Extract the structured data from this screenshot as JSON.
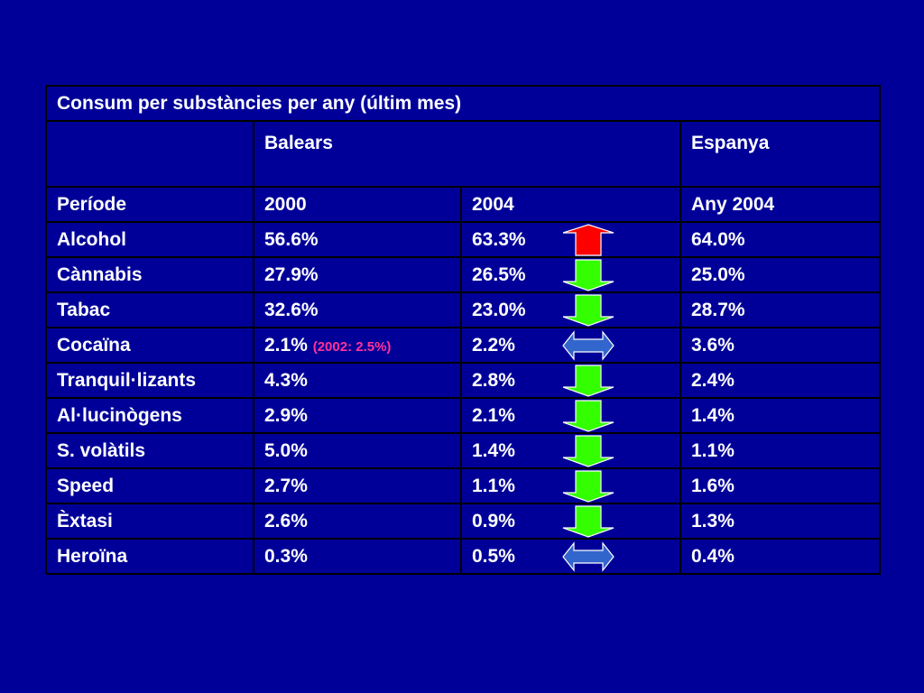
{
  "table": {
    "title": "Consum per substàncies per any (últim mes)",
    "groups": {
      "balears": "Balears",
      "espanya": "Espanya"
    },
    "columns": {
      "period": "Període",
      "balears_2000": "2000",
      "balears_2004": "2004",
      "espanya_2004": "Any 2004"
    },
    "rows": [
      {
        "substance": "Alcohol",
        "b2000": "56.6%",
        "b2000_note": "",
        "b2004": "63.3%",
        "trend": "up",
        "es2004": "64.0%"
      },
      {
        "substance": "Cànnabis",
        "b2000": "27.9%",
        "b2000_note": "",
        "b2004": "26.5%",
        "trend": "down",
        "es2004": "25.0%"
      },
      {
        "substance": "Tabac",
        "b2000": "32.6%",
        "b2000_note": "",
        "b2004": "23.0%",
        "trend": "down",
        "es2004": "28.7%"
      },
      {
        "substance": "Cocaïna",
        "b2000": "2.1%",
        "b2000_note": "(2002: 2.5%)",
        "b2004": "2.2%",
        "trend": "stable",
        "es2004": "3.6%"
      },
      {
        "substance": "Tranquil·lizants",
        "b2000": "4.3%",
        "b2000_note": "",
        "b2004": "2.8%",
        "trend": "down",
        "es2004": "2.4%"
      },
      {
        "substance": "Al·lucinògens",
        "b2000": "2.9%",
        "b2000_note": "",
        "b2004": "2.1%",
        "trend": "down",
        "es2004": "1.4%"
      },
      {
        "substance": "S. volàtils",
        "b2000": "5.0%",
        "b2000_note": "",
        "b2004": "1.4%",
        "trend": "down",
        "es2004": "1.1%"
      },
      {
        "substance": "Speed",
        "b2000": "2.7%",
        "b2000_note": "",
        "b2004": "1.1%",
        "trend": "down",
        "es2004": "1.6%"
      },
      {
        "substance": "Èxtasi",
        "b2000": "2.6%",
        "b2000_note": "",
        "b2004": "0.9%",
        "trend": "down",
        "es2004": "1.3%"
      },
      {
        "substance": "Heroïna",
        "b2000": "0.3%",
        "b2000_note": "",
        "b2004": "0.5%",
        "trend": "stable",
        "es2004": "0.4%"
      }
    ]
  },
  "colors": {
    "background": "#000099",
    "text": "#ffffff",
    "note": "#ff3399",
    "arrow_up": "#ff0000",
    "arrow_down": "#33ff00",
    "arrow_stable": "#3366cc"
  },
  "icons": {
    "up": "arrow-up-icon",
    "down": "arrow-down-icon",
    "stable": "arrow-left-right-icon"
  }
}
